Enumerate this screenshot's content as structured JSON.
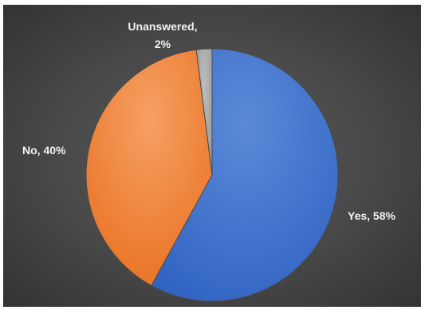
{
  "chart_data": {
    "type": "pie",
    "title": "",
    "categories": [
      "Yes",
      "No",
      "Unanswered"
    ],
    "values": [
      58,
      40,
      2
    ],
    "unit": "%",
    "labels": [
      {
        "line1": "Yes, 58%",
        "line2": ""
      },
      {
        "line1": "No, 40%",
        "line2": ""
      },
      {
        "line1": "Unanswered,",
        "line2": "2%"
      }
    ],
    "colors": [
      "#4472c4",
      "#ed7d31",
      "#a5a5a5"
    ],
    "background_color": "#404040",
    "legend": "none",
    "start_angle_deg": 0,
    "direction": "clockwise"
  }
}
